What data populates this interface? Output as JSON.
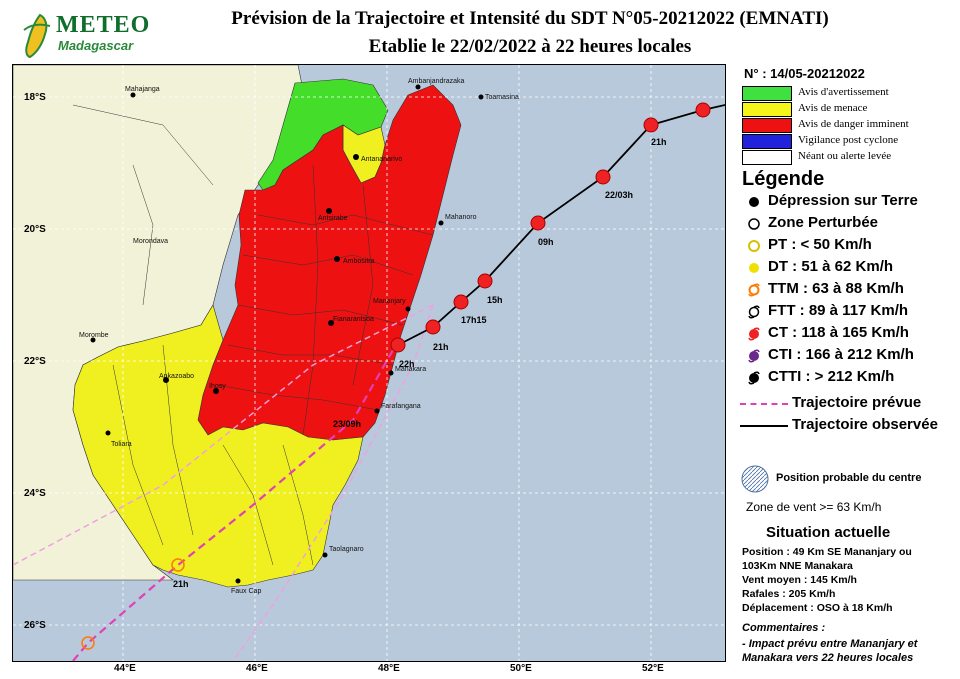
{
  "logo": {
    "brand": "METEO",
    "subtitle": "Madagascar"
  },
  "title": {
    "line1": "Prévision de la Trajectoire et Intensité du SDT N°05-20212022 (EMNATI)",
    "line2": "Etablie le 22/02/2022 à 22 heures locales"
  },
  "map": {
    "lon_labels": [
      "44°E",
      "46°E",
      "48°E",
      "50°E",
      "52°E"
    ],
    "lat_labels": [
      "18°S",
      "20°S",
      "22°S",
      "24°S",
      "26°S"
    ],
    "towns": [
      "Mahajanga",
      "Ambanjandrazaka",
      "Toamasina",
      "Antananarivo",
      "Antsirabe",
      "Mahanoro",
      "Morondava",
      "Ambositra",
      "Mananjary",
      "Fianarantsoa",
      "Morombe",
      "Manakara",
      "Ankazoabo",
      "Ihosy",
      "Farafangana",
      "Toliara",
      "Taolagnaro",
      "Faux Cap"
    ],
    "observed_labels": [
      "21h",
      "22/03h",
      "09h",
      "15h",
      "17h15",
      "21h",
      "22h"
    ],
    "forecast_labels": [
      "23/09h",
      "21h"
    ],
    "colors": {
      "sea": "#b8c9dc",
      "land": "#f2f2d8",
      "green": "#44dd2a",
      "yellow": "#f0f020",
      "red": "#ee1111",
      "blue": "#2222ee",
      "track_forecast": "#e040b8"
    }
  },
  "legend": {
    "advisory_number": "N° : 14/05-20212022",
    "advisories": [
      {
        "label": "Avis d'avertissement",
        "color": "#3fe03f"
      },
      {
        "label": "Avis de menace",
        "color": "#f5f51a"
      },
      {
        "label": "Avis de danger imminent",
        "color": "#ee1111"
      },
      {
        "label": "Vigilance post cyclone",
        "color": "#2222dd"
      },
      {
        "label": "Néant ou alerte levée",
        "color": "#ffffff"
      }
    ],
    "title": "Légende",
    "items": [
      {
        "label": "Dépression sur Terre",
        "icon": "filled-black-dot"
      },
      {
        "label": "Zone Perturbée",
        "icon": "open-circle"
      },
      {
        "label": "PT : < 50 Km/h",
        "icon": "yellow-open-circle"
      },
      {
        "label": "DT : 51 à 62 Km/h",
        "icon": "yellow-filled-dot"
      },
      {
        "label": "TTM : 63 à 88 Km/h",
        "icon": "orange-cyclone"
      },
      {
        "label": "FTT : 89 à 117 Km/h",
        "icon": "outline-cyclone"
      },
      {
        "label": "CT : 118 à 165 Km/h",
        "icon": "red-cyclone"
      },
      {
        "label": "CTI : 166 à 212 Km/h",
        "icon": "purple-cyclone"
      },
      {
        "label": "CTTI : > 212 Km/h",
        "icon": "black-cyclone"
      }
    ],
    "track_forecast": "Trajectoire prévue",
    "track_observed": "Trajectoire observée",
    "probable_position": "Position probable du centre",
    "wind_zone": "Zone de vent >= 63 Km/h"
  },
  "situation": {
    "title": "Situation actuelle",
    "lines": [
      "Position : 49 Km SE Mananjary ou",
      "103Km NNE Manakara",
      "Vent moyen : 145 Km/h",
      "Rafales : 205 Km/h",
      "Déplacement : OSO à 18 Km/h"
    ]
  },
  "comments": {
    "title": "Commentaires :",
    "lines": [
      "- Impact prévu entre Mananjary et",
      "Manakara vers 22 heures locales"
    ]
  }
}
